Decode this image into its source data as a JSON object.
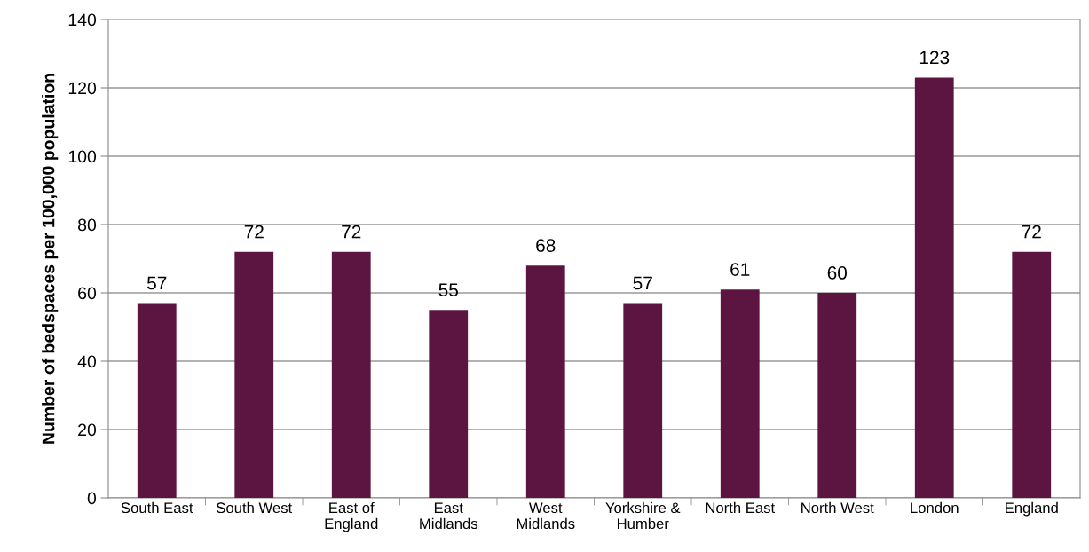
{
  "chart_data": {
    "type": "bar",
    "ylabel": "Number of bedspaces per 100,000 population",
    "categories": [
      "South East",
      "South West",
      "East of England",
      "East Midlands",
      "West Midlands",
      "Yorkshire & Humber",
      "North East",
      "North West",
      "London",
      "England"
    ],
    "values": [
      57,
      72,
      72,
      55,
      68,
      57,
      61,
      60,
      123,
      72
    ],
    "color": "#5c1540",
    "data_labels": true,
    "ylim": [
      0,
      140
    ],
    "yticks": [
      0,
      20,
      40,
      60,
      80,
      100,
      120,
      140
    ],
    "grid": "y",
    "legend": false
  }
}
